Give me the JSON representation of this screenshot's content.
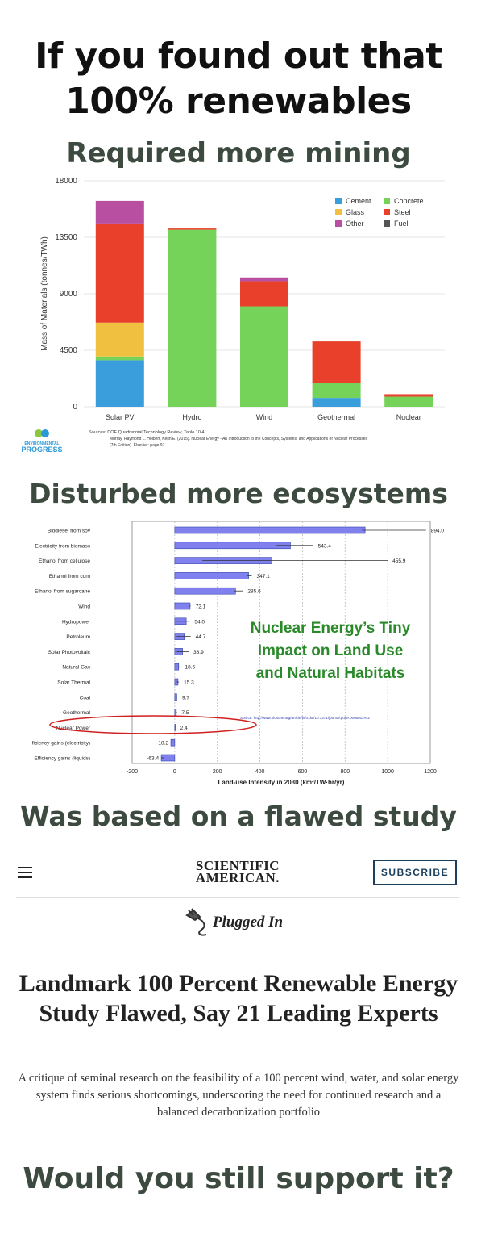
{
  "headlines": {
    "line1": "If you found out that",
    "line2": "100% renewables",
    "mining": "Required more mining",
    "ecosystems": "Disturbed more ecosystems",
    "flawed": "Was based on a flawed study",
    "question": "Would you still support it?"
  },
  "chart_data": [
    {
      "type": "bar",
      "stacked": true,
      "ylabel": "Mass of Materials (tonnes/TWh)",
      "ylim": [
        0,
        18000
      ],
      "yticks": [
        0,
        4500,
        9000,
        13500,
        18000
      ],
      "categories": [
        "Solar PV",
        "Hydro",
        "Wind",
        "Geothermal",
        "Nuclear"
      ],
      "legend_position": "top-right",
      "series": [
        {
          "name": "Cement",
          "color": "#3a9ddc",
          "values": [
            3700,
            0,
            0,
            700,
            0
          ]
        },
        {
          "name": "Concrete",
          "color": "#76d35a",
          "values": [
            300,
            14100,
            8000,
            1200,
            800
          ]
        },
        {
          "name": "Glass",
          "color": "#f0c040",
          "values": [
            2700,
            0,
            0,
            0,
            0
          ]
        },
        {
          "name": "Steel",
          "color": "#e8402a",
          "values": [
            7900,
            100,
            2000,
            3300,
            200
          ]
        },
        {
          "name": "Other",
          "color": "#b84fa0",
          "values": [
            1800,
            0,
            300,
            0,
            0
          ]
        },
        {
          "name": "Fuel",
          "color": "#555555",
          "values": [
            0,
            0,
            0,
            0,
            0
          ]
        }
      ],
      "sources": [
        "Sources: DOE Quadrennial Technology Review, Table 10.4",
        "Murray, Raymond L. Holbert, Keith E. (2015). Nuclear Energy - An Introduction to the Concepts, Systems, and Applications of Nuclear Processes",
        "(7th Edition). Elsevier: page 97"
      ],
      "brand": {
        "line1": "ENVIRONMENTAL",
        "line2": "PROGRESS",
        "green": "#8dc63f",
        "blue": "#2a9ad6"
      }
    },
    {
      "type": "bar",
      "orientation": "horizontal",
      "xlabel": "Land-use Intensity in 2030",
      "xlabel_unit": "(km²/TW·hr/yr)",
      "xlim": [
        -200,
        1200
      ],
      "xticks": [
        -200,
        0,
        200,
        400,
        600,
        800,
        1000,
        1200
      ],
      "annotation": [
        "Nuclear Energy’s Tiny",
        "Impact on Land Use",
        "and Natural Habitats"
      ],
      "annotation_color": "#2a8a2a",
      "highlight_category": "Nuclear Power",
      "highlight_color": "#d02020",
      "source_text": "Source: http://www.plosone.org/article/info:doi/10.1371/journal.pone.0006802#s2",
      "bar_color": "#8080ee",
      "categories": [
        "Biodiesel from soy",
        "Electricity from biomass",
        "Ethanol from cellulose",
        "Ethanol from corn",
        "Ethanol from sugarcane",
        "Wind",
        "Hydropower",
        "Petroleum",
        "Solar Photovoltaic",
        "Natural Gas",
        "Solar Thermal",
        "Coal",
        "Geothermal",
        "Nuclear Power",
        "Efficiency gains (electricity)",
        "Efficiency gains (liquids)"
      ],
      "values": [
        894.0,
        543.4,
        455.9,
        347.1,
        285.6,
        72.1,
        54.0,
        44.7,
        36.9,
        18.6,
        15.3,
        9.7,
        7.5,
        2.4,
        -18.2,
        -63.4
      ],
      "value_labels": [
        "894.0",
        "543.4",
        "455.9",
        "347.1",
        "285.6",
        "72.1",
        "54.0",
        "44.7",
        "36.9",
        "18.6",
        "15.3",
        "9.7",
        "7.5",
        "2.4",
        "-18.2",
        "-63.4"
      ],
      "error_low": [
        880,
        475,
        130,
        340,
        280,
        70,
        10,
        10,
        10,
        15,
        10,
        5,
        5,
        2,
        -18,
        -63
      ],
      "error_high": [
        1180,
        650,
        1000,
        362,
        320,
        75,
        70,
        75,
        65,
        25,
        20,
        12,
        10,
        3,
        -14,
        -50
      ]
    }
  ],
  "sciam": {
    "logo_line1": "SCIENTIFIC",
    "logo_line2": "AMERICAN.",
    "subscribe": "SUBSCRIBE",
    "section": "Plugged In",
    "title": "Landmark 100 Percent Renewable Energy Study Flawed, Say 21 Leading Experts",
    "subtitle": "A critique of seminal research on the feasibility of a 100 percent wind, water, and solar energy system finds serious shortcomings, underscoring the need for continued research and a balanced decarbonization portfolio",
    "icons": {
      "menu": "hamburger-menu-icon",
      "section": "plug-icon"
    }
  }
}
